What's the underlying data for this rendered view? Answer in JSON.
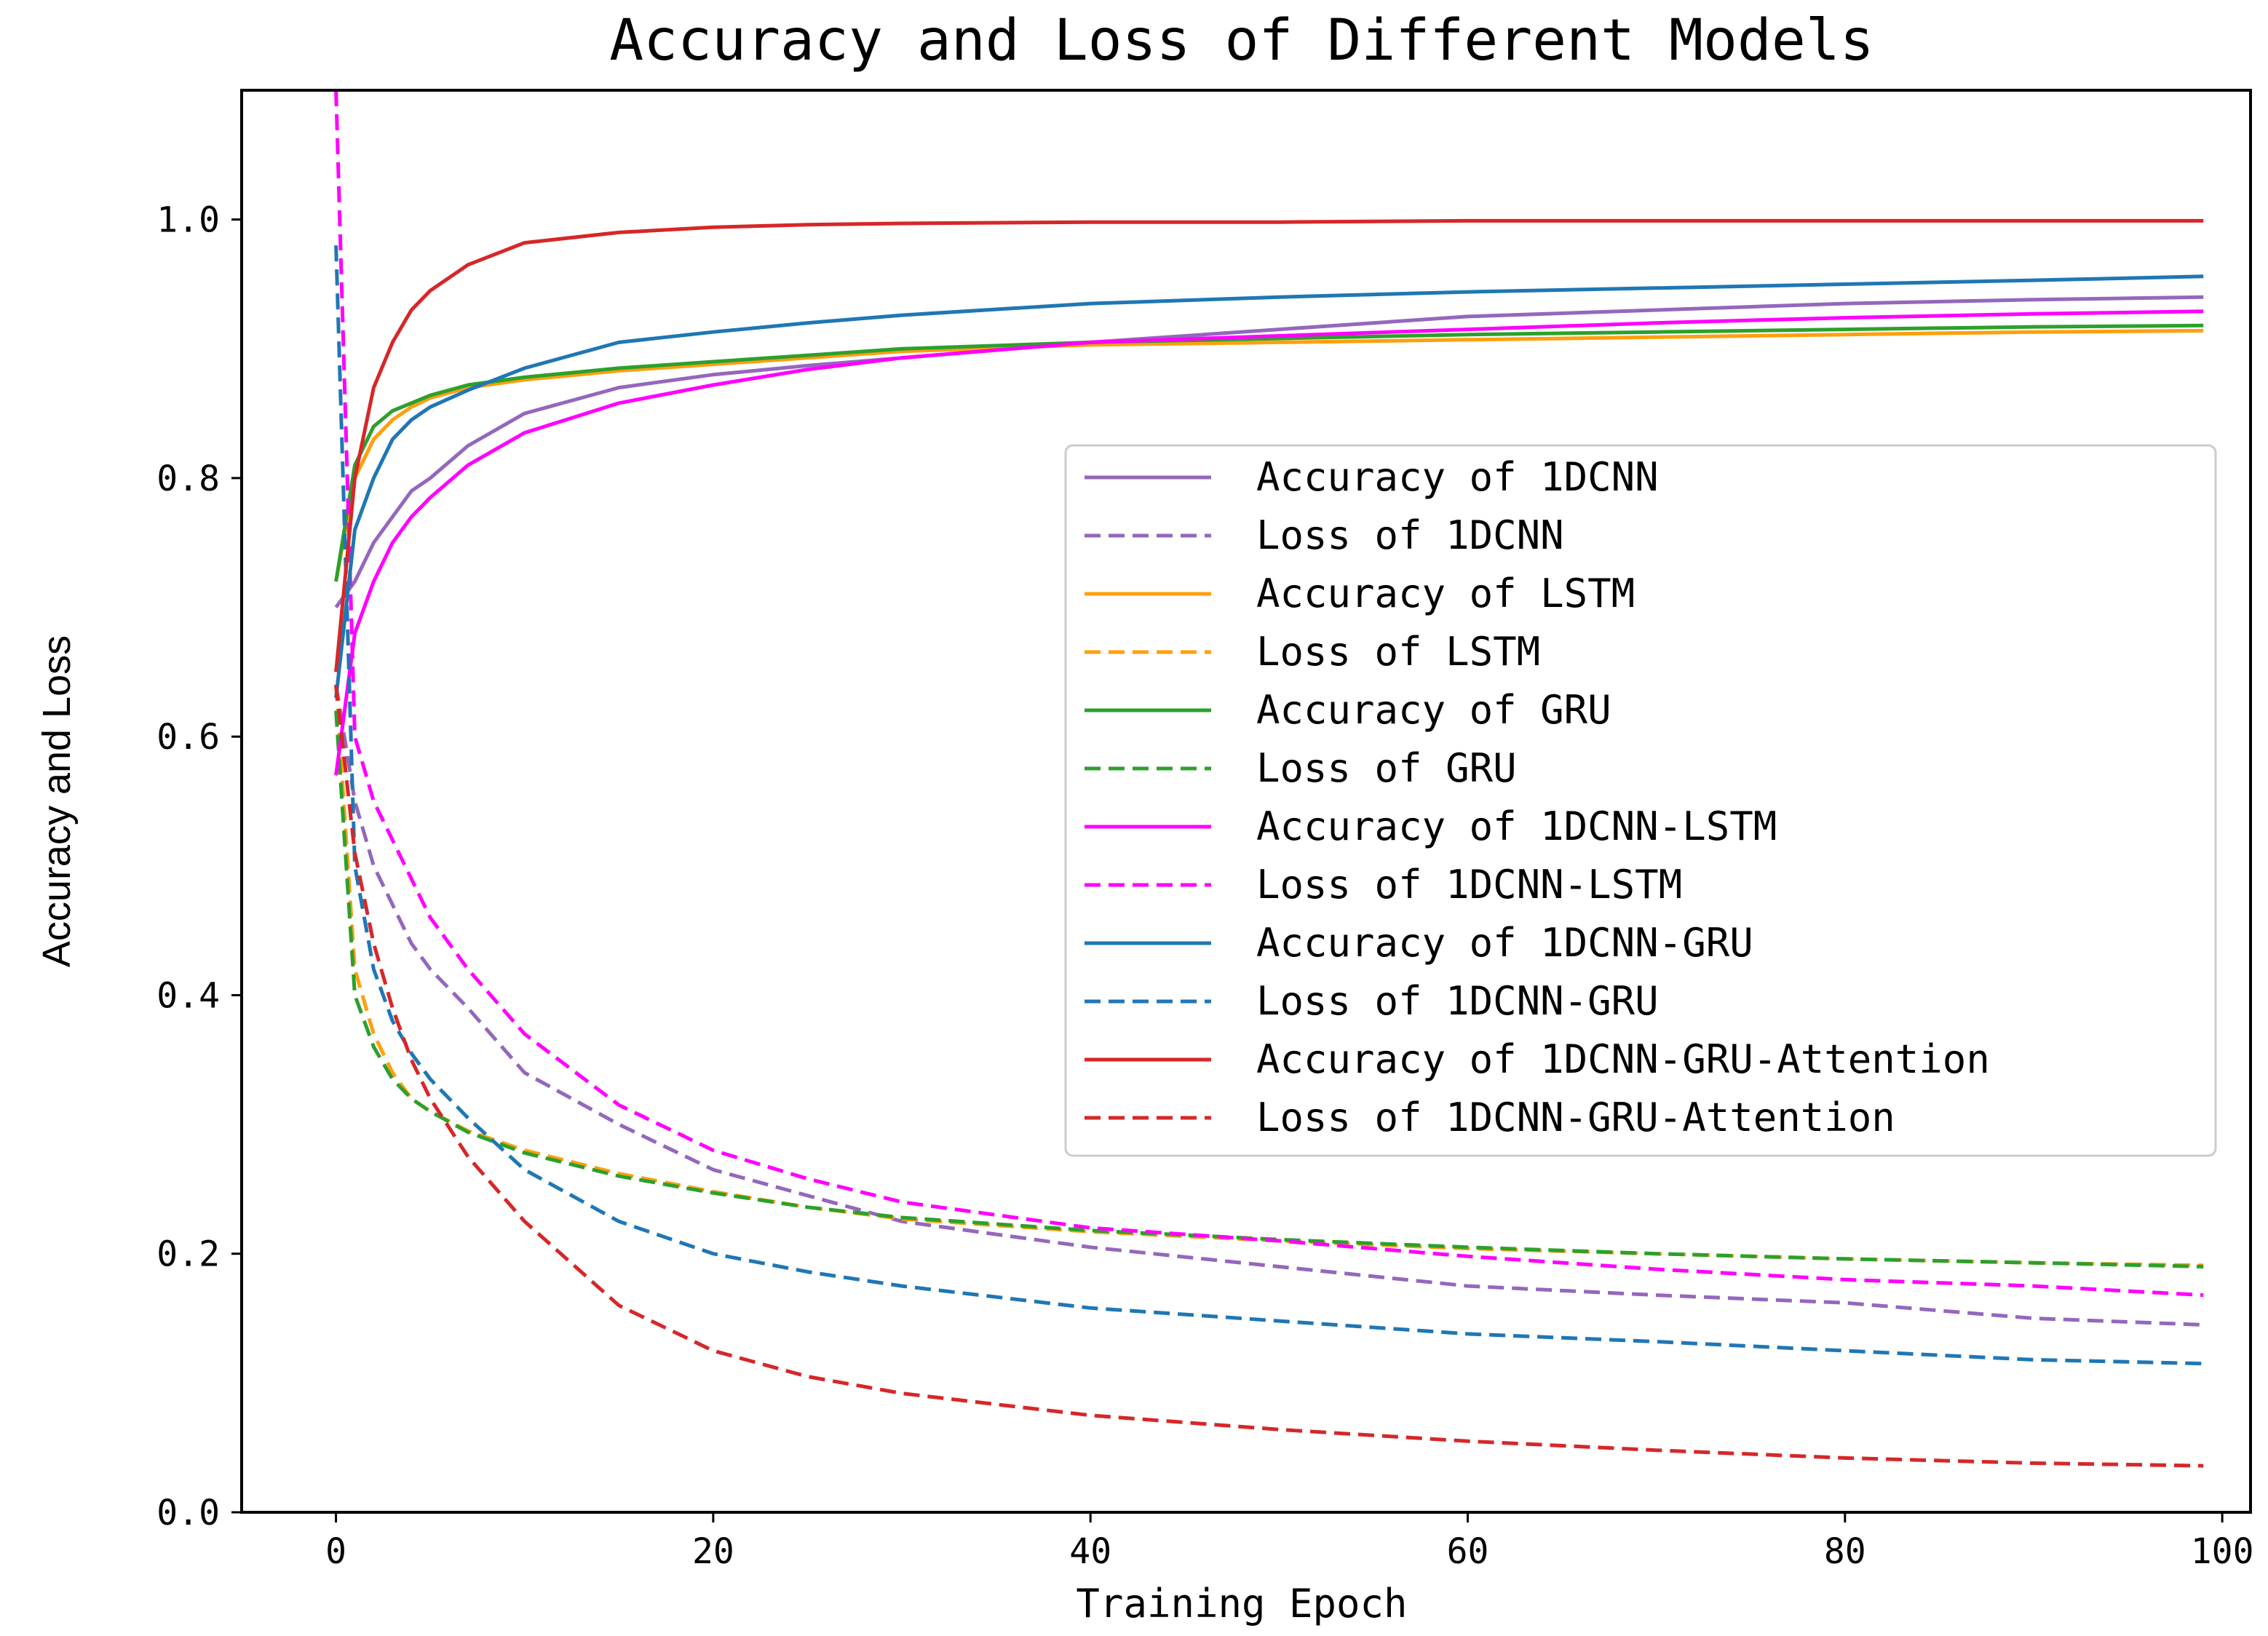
{
  "chart_data": {
    "type": "line",
    "title": "Accuracy and Loss of Different Models",
    "xlabel": "Training Epoch",
    "ylabel": "Accuracy and Loss",
    "xlim": [
      -5,
      101.5
    ],
    "ylim": [
      0.0,
      1.1
    ],
    "xticks": [
      0,
      20,
      40,
      60,
      80,
      100
    ],
    "xtick_labels": [
      "0",
      "20",
      "40",
      "60",
      "80",
      "100"
    ],
    "yticks": [
      0.0,
      0.2,
      0.4,
      0.6,
      0.8,
      1.0
    ],
    "ytick_labels": [
      "0.0",
      "0.2",
      "0.4",
      "0.6",
      "0.8",
      "1.0"
    ],
    "grid": false,
    "legend_position": "center-right",
    "x": [
      0,
      1,
      2,
      3,
      4,
      5,
      7,
      10,
      15,
      20,
      25,
      30,
      40,
      50,
      60,
      70,
      80,
      90,
      99
    ],
    "series": [
      {
        "name": "Accuracy of 1DCNN",
        "color": "#9467bd",
        "dash": "solid",
        "values": [
          0.7,
          0.72,
          0.75,
          0.77,
          0.79,
          0.8,
          0.825,
          0.85,
          0.87,
          0.88,
          0.887,
          0.893,
          0.905,
          0.915,
          0.925,
          0.93,
          0.935,
          0.938,
          0.94
        ]
      },
      {
        "name": "Loss of 1DCNN",
        "color": "#9467bd",
        "dash": "dashed",
        "values": [
          0.64,
          0.55,
          0.5,
          0.47,
          0.44,
          0.42,
          0.39,
          0.34,
          0.3,
          0.265,
          0.245,
          0.225,
          0.205,
          0.19,
          0.175,
          0.168,
          0.162,
          0.15,
          0.145
        ]
      },
      {
        "name": "Accuracy of LSTM",
        "color": "#ff9f0e",
        "dash": "solid",
        "values": [
          0.72,
          0.8,
          0.83,
          0.845,
          0.855,
          0.862,
          0.87,
          0.876,
          0.883,
          0.888,
          0.893,
          0.898,
          0.903,
          0.905,
          0.907,
          0.909,
          0.911,
          0.913,
          0.914
        ]
      },
      {
        "name": "Loss of LSTM",
        "color": "#ff9f0e",
        "dash": "dashed",
        "values": [
          0.64,
          0.42,
          0.37,
          0.34,
          0.32,
          0.31,
          0.295,
          0.28,
          0.262,
          0.248,
          0.236,
          0.227,
          0.217,
          0.21,
          0.204,
          0.2,
          0.196,
          0.193,
          0.191
        ]
      },
      {
        "name": "Accuracy of GRU",
        "color": "#2ca02c",
        "dash": "solid",
        "values": [
          0.72,
          0.81,
          0.84,
          0.852,
          0.858,
          0.864,
          0.872,
          0.878,
          0.885,
          0.89,
          0.895,
          0.9,
          0.905,
          0.908,
          0.911,
          0.913,
          0.915,
          0.917,
          0.918
        ]
      },
      {
        "name": "Loss of GRU",
        "color": "#2ca02c",
        "dash": "dashed",
        "values": [
          0.62,
          0.4,
          0.36,
          0.335,
          0.32,
          0.31,
          0.294,
          0.278,
          0.26,
          0.247,
          0.236,
          0.228,
          0.218,
          0.211,
          0.205,
          0.2,
          0.196,
          0.193,
          0.19
        ]
      },
      {
        "name": "Accuracy of 1DCNN-LSTM",
        "color": "#ff00ff",
        "dash": "solid",
        "values": [
          0.57,
          0.68,
          0.72,
          0.75,
          0.77,
          0.785,
          0.81,
          0.835,
          0.858,
          0.872,
          0.884,
          0.893,
          0.905,
          0.91,
          0.915,
          0.92,
          0.924,
          0.927,
          0.929
        ]
      },
      {
        "name": "Loss of 1DCNN-LSTM",
        "color": "#ff00ff",
        "dash": "dashed",
        "values": [
          1.1,
          0.6,
          0.55,
          0.52,
          0.49,
          0.46,
          0.42,
          0.37,
          0.315,
          0.28,
          0.258,
          0.24,
          0.22,
          0.21,
          0.198,
          0.188,
          0.18,
          0.175,
          0.168
        ]
      },
      {
        "name": "Accuracy of 1DCNN-GRU",
        "color": "#1f77b4",
        "dash": "solid",
        "values": [
          0.63,
          0.76,
          0.8,
          0.83,
          0.845,
          0.855,
          0.868,
          0.885,
          0.905,
          0.913,
          0.92,
          0.926,
          0.935,
          0.94,
          0.944,
          0.947,
          0.95,
          0.953,
          0.956
        ]
      },
      {
        "name": "Loss of 1DCNN-GRU",
        "color": "#1f77b4",
        "dash": "dashed",
        "values": [
          0.98,
          0.5,
          0.42,
          0.38,
          0.355,
          0.335,
          0.305,
          0.265,
          0.225,
          0.2,
          0.186,
          0.175,
          0.158,
          0.148,
          0.138,
          0.132,
          0.125,
          0.118,
          0.115
        ]
      },
      {
        "name": "Accuracy of 1DCNN-GRU-Attention",
        "color": "#d62728",
        "dash": "solid",
        "values": [
          0.65,
          0.8,
          0.87,
          0.905,
          0.93,
          0.945,
          0.965,
          0.982,
          0.99,
          0.994,
          0.996,
          0.997,
          0.998,
          0.998,
          0.999,
          0.999,
          0.999,
          0.999,
          0.999
        ]
      },
      {
        "name": "Loss of 1DCNN-GRU-Attention",
        "color": "#d62728",
        "dash": "dashed",
        "values": [
          0.64,
          0.51,
          0.44,
          0.39,
          0.35,
          0.32,
          0.275,
          0.225,
          0.16,
          0.125,
          0.105,
          0.092,
          0.075,
          0.064,
          0.055,
          0.048,
          0.042,
          0.038,
          0.036
        ]
      }
    ]
  }
}
